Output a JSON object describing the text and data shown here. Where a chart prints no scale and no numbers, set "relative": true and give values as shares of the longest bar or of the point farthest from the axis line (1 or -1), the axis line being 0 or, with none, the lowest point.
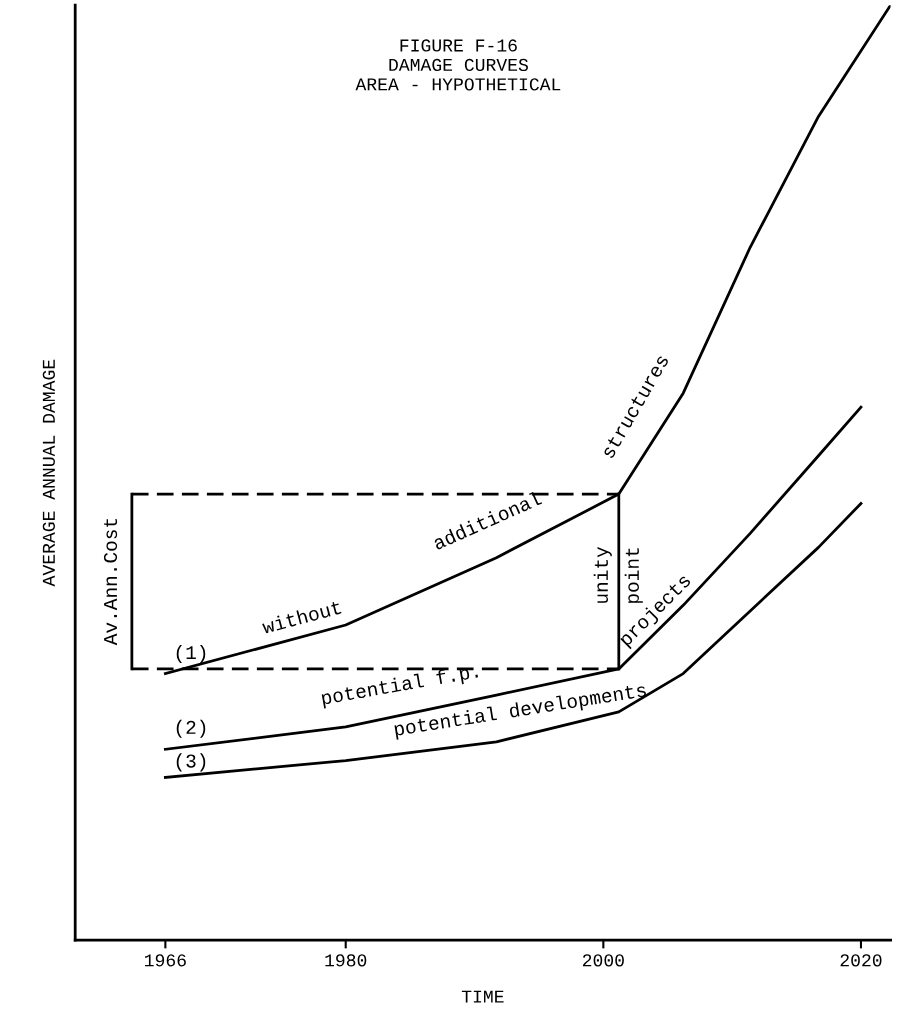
{
  "chart_data": {
    "type": "line",
    "title": "FIGURE F-16\nDAMAGE CURVES\nAREA - HYPOTHETICAL",
    "xlabel": "TIME",
    "ylabel": "AVERAGE ANNUAL DAMAGE",
    "relative": true,
    "xlim": [
      1959,
      2022.3
    ],
    "xticks": [
      1966,
      1980,
      2000,
      2020
    ],
    "grid": false,
    "legend": false,
    "marker": "none",
    "line_style": "solid",
    "series": [
      {
        "color": "#000000",
        "x": [
          1966,
          1980,
          1991.7,
          2001.2,
          2006.2,
          2011.4,
          2016.7,
          2022.3
        ],
        "values": [
          0.285,
          0.337,
          0.409,
          0.477,
          0.585,
          0.741,
          0.881,
          1.0
        ]
      },
      {
        "color": "#000000",
        "x": [
          1966,
          1980,
          1991.7,
          2001.2,
          2006.2,
          2011.4,
          2016.7,
          2020
        ],
        "values": [
          0.204,
          0.228,
          0.262,
          0.29,
          0.358,
          0.435,
          0.518,
          0.57
        ]
      },
      {
        "color": "#000000",
        "x": [
          1966,
          1980,
          1991.7,
          2001.2,
          2006.2,
          2011.4,
          2016.7,
          2020
        ],
        "values": [
          0.174,
          0.192,
          0.212,
          0.244,
          0.285,
          0.352,
          0.42,
          0.467
        ]
      },
      {
        "color": "#000000",
        "line_style": "dashed",
        "x": [
          1963.4,
          2001.2
        ],
        "values": [
          0.477,
          0.477
        ]
      },
      {
        "color": "#000000",
        "line_style": "dashed",
        "x": [
          1963.4,
          2001.2
        ],
        "values": [
          0.29,
          0.29
        ]
      },
      {
        "color": "#000000",
        "x": [
          1963.4,
          1963.4
        ],
        "values": [
          0.477,
          0.29
        ]
      },
      {
        "color": "#000000",
        "x": [
          2001.2,
          2001.2
        ],
        "values": [
          0.477,
          0.29
        ]
      }
    ],
    "annotations": [
      "(1)",
      "without",
      "additional",
      "structures",
      "(2)",
      "potential f.p.",
      "projects",
      "(3)",
      "potential developments",
      "Av.Ann.Cost",
      "unity",
      "point"
    ]
  }
}
